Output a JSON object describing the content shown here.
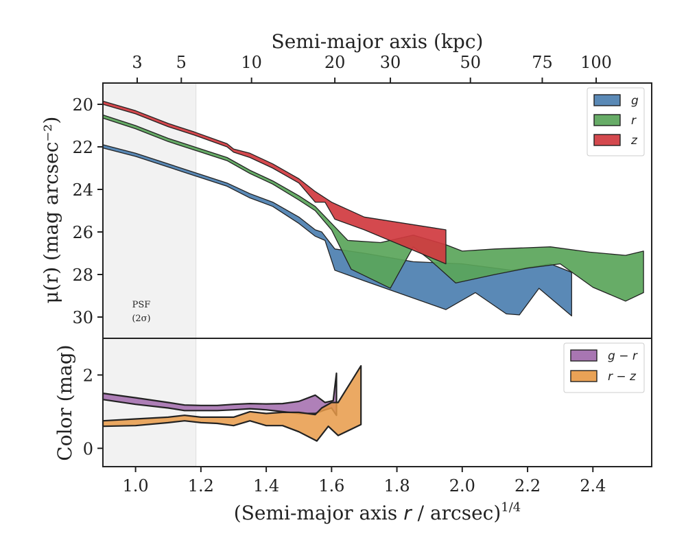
{
  "chart_data": [
    {
      "type": "area",
      "panel": "surface-brightness",
      "title": "",
      "xlabel_pre": "(Semi-major axis ",
      "xlabel_var": "r",
      "xlabel_post": " / arcsec)",
      "xlabel_sup": "1/4",
      "ylabel": "μ(r) (mag arcsec⁻²)",
      "top_axis_label": "Semi-major axis (kpc)",
      "xlim": [
        0.9,
        2.58
      ],
      "ylim": [
        19,
        31
      ],
      "y_inverted": true,
      "yticks": [
        20,
        22,
        24,
        26,
        28,
        30
      ],
      "top_ticks": [
        {
          "label": "3",
          "x": 1.005
        },
        {
          "label": "5",
          "x": 1.14
        },
        {
          "label": "10",
          "x": 1.355
        },
        {
          "label": "20",
          "x": 1.61
        },
        {
          "label": "30",
          "x": 1.78
        },
        {
          "label": "50",
          "x": 2.025
        },
        {
          "label": "75",
          "x": 2.245
        },
        {
          "label": "100",
          "x": 2.41
        }
      ],
      "psf_region": {
        "x0": 0.9,
        "x1": 1.185,
        "label_line1": "PSF",
        "label_line2": "(2σ)"
      },
      "legend_position": "top-right",
      "series": [
        {
          "name": "g",
          "color": "#4c7fb0",
          "upper": [
            [
              0.9,
              21.9
            ],
            [
              1.0,
              22.3
            ],
            [
              1.1,
              22.8
            ],
            [
              1.18,
              23.2
            ],
            [
              1.28,
              23.7
            ],
            [
              1.35,
              24.2
            ],
            [
              1.42,
              24.6
            ],
            [
              1.5,
              25.3
            ],
            [
              1.55,
              25.9
            ],
            [
              1.57,
              26.0
            ],
            [
              1.61,
              26.8
            ],
            [
              1.7,
              27.0
            ],
            [
              1.85,
              27.4
            ],
            [
              2.0,
              27.5
            ],
            [
              2.15,
              27.8
            ],
            [
              2.27,
              27.5
            ],
            [
              2.335,
              27.9
            ]
          ],
          "lower": [
            [
              0.9,
              22.05
            ],
            [
              1.0,
              22.45
            ],
            [
              1.1,
              22.95
            ],
            [
              1.18,
              23.35
            ],
            [
              1.28,
              23.85
            ],
            [
              1.35,
              24.4
            ],
            [
              1.42,
              24.8
            ],
            [
              1.5,
              25.6
            ],
            [
              1.55,
              26.2
            ],
            [
              1.58,
              26.4
            ],
            [
              1.61,
              27.8
            ],
            [
              1.7,
              28.3
            ],
            [
              1.95,
              29.65
            ],
            [
              2.04,
              28.85
            ],
            [
              2.135,
              29.85
            ],
            [
              2.175,
              29.9
            ],
            [
              2.235,
              28.65
            ],
            [
              2.335,
              29.95
            ]
          ]
        },
        {
          "name": "r",
          "color": "#5aa55a",
          "upper": [
            [
              0.9,
              20.5
            ],
            [
              1.0,
              21.0
            ],
            [
              1.1,
              21.6
            ],
            [
              1.18,
              22.0
            ],
            [
              1.28,
              22.5
            ],
            [
              1.35,
              23.1
            ],
            [
              1.42,
              23.6
            ],
            [
              1.5,
              24.3
            ],
            [
              1.55,
              24.8
            ],
            [
              1.6,
              25.6
            ],
            [
              1.65,
              26.4
            ],
            [
              1.75,
              26.5
            ],
            [
              1.85,
              26.15
            ],
            [
              1.95,
              26.6
            ],
            [
              2.0,
              26.9
            ],
            [
              2.1,
              26.8
            ],
            [
              2.27,
              26.7
            ],
            [
              2.39,
              26.95
            ],
            [
              2.5,
              27.1
            ],
            [
              2.555,
              26.9
            ]
          ],
          "lower": [
            [
              0.9,
              20.65
            ],
            [
              1.0,
              21.15
            ],
            [
              1.1,
              21.75
            ],
            [
              1.18,
              22.15
            ],
            [
              1.28,
              22.65
            ],
            [
              1.35,
              23.25
            ],
            [
              1.42,
              23.75
            ],
            [
              1.5,
              24.5
            ],
            [
              1.55,
              25.0
            ],
            [
              1.6,
              25.9
            ],
            [
              1.66,
              27.75
            ],
            [
              1.78,
              28.65
            ],
            [
              1.85,
              26.7
            ],
            [
              1.9,
              27.3
            ],
            [
              1.98,
              28.4
            ],
            [
              2.1,
              28.0
            ],
            [
              2.2,
              27.7
            ],
            [
              2.3,
              27.5
            ],
            [
              2.4,
              28.6
            ],
            [
              2.5,
              29.25
            ],
            [
              2.555,
              28.85
            ]
          ]
        },
        {
          "name": "z",
          "color": "#d0393f",
          "upper": [
            [
              0.9,
              19.85
            ],
            [
              1.0,
              20.3
            ],
            [
              1.1,
              20.9
            ],
            [
              1.18,
              21.3
            ],
            [
              1.28,
              21.85
            ],
            [
              1.3,
              22.1
            ],
            [
              1.35,
              22.3
            ],
            [
              1.42,
              22.8
            ],
            [
              1.5,
              23.5
            ],
            [
              1.55,
              24.1
            ],
            [
              1.6,
              24.6
            ],
            [
              1.7,
              25.3
            ],
            [
              1.95,
              25.9
            ]
          ],
          "lower": [
            [
              0.9,
              20.0
            ],
            [
              1.0,
              20.45
            ],
            [
              1.1,
              21.05
            ],
            [
              1.18,
              21.45
            ],
            [
              1.28,
              22.0
            ],
            [
              1.3,
              22.25
            ],
            [
              1.35,
              22.5
            ],
            [
              1.42,
              23.0
            ],
            [
              1.5,
              23.7
            ],
            [
              1.55,
              24.6
            ],
            [
              1.58,
              24.6
            ],
            [
              1.61,
              25.4
            ],
            [
              1.7,
              25.9
            ],
            [
              1.95,
              27.5
            ]
          ]
        }
      ]
    },
    {
      "type": "area",
      "panel": "color",
      "title": "",
      "xlabel": "(Semi-major axis r / arcsec)^1/4",
      "ylabel": "Color (mag)",
      "xlim": [
        0.9,
        2.58
      ],
      "ylim": [
        -0.5,
        3.0
      ],
      "yticks": [
        0,
        2
      ],
      "xticks": [
        1.0,
        1.2,
        1.4,
        1.6,
        1.8,
        2.0,
        2.2,
        2.4
      ],
      "xtick_labels": [
        "1.0",
        "1.2",
        "1.4",
        "1.6",
        "1.8",
        "2.0",
        "2.2",
        "2.4"
      ],
      "legend_position": "top-right",
      "series": [
        {
          "name": "g − r",
          "color": "#a16aab",
          "upper": [
            [
              0.9,
              1.5
            ],
            [
              1.0,
              1.38
            ],
            [
              1.1,
              1.25
            ],
            [
              1.15,
              1.18
            ],
            [
              1.2,
              1.17
            ],
            [
              1.25,
              1.17
            ],
            [
              1.3,
              1.2
            ],
            [
              1.35,
              1.22
            ],
            [
              1.4,
              1.21
            ],
            [
              1.45,
              1.22
            ],
            [
              1.5,
              1.28
            ],
            [
              1.55,
              1.45
            ],
            [
              1.58,
              1.25
            ],
            [
              1.605,
              1.3
            ],
            [
              1.615,
              2.05
            ]
          ],
          "lower": [
            [
              0.9,
              1.33
            ],
            [
              1.0,
              1.2
            ],
            [
              1.1,
              1.1
            ],
            [
              1.15,
              1.03
            ],
            [
              1.2,
              1.03
            ],
            [
              1.25,
              1.03
            ],
            [
              1.3,
              1.05
            ],
            [
              1.35,
              1.08
            ],
            [
              1.4,
              1.05
            ],
            [
              1.45,
              1.0
            ],
            [
              1.5,
              0.95
            ],
            [
              1.55,
              0.95
            ],
            [
              1.58,
              1.05
            ],
            [
              1.6,
              1.1
            ],
            [
              1.615,
              0.9
            ]
          ]
        },
        {
          "name": "r − z",
          "color": "#e79a48",
          "upper": [
            [
              0.9,
              0.75
            ],
            [
              1.0,
              0.8
            ],
            [
              1.1,
              0.85
            ],
            [
              1.15,
              0.9
            ],
            [
              1.2,
              0.85
            ],
            [
              1.25,
              0.85
            ],
            [
              1.3,
              0.85
            ],
            [
              1.35,
              1.0
            ],
            [
              1.4,
              0.95
            ],
            [
              1.45,
              0.98
            ],
            [
              1.5,
              0.98
            ],
            [
              1.55,
              0.92
            ],
            [
              1.57,
              1.1
            ],
            [
              1.6,
              1.25
            ],
            [
              1.62,
              1.25
            ],
            [
              1.69,
              2.25
            ]
          ],
          "lower": [
            [
              0.9,
              0.6
            ],
            [
              1.0,
              0.62
            ],
            [
              1.1,
              0.7
            ],
            [
              1.15,
              0.75
            ],
            [
              1.2,
              0.7
            ],
            [
              1.25,
              0.68
            ],
            [
              1.3,
              0.62
            ],
            [
              1.35,
              0.75
            ],
            [
              1.4,
              0.62
            ],
            [
              1.45,
              0.62
            ],
            [
              1.5,
              0.45
            ],
            [
              1.555,
              0.2
            ],
            [
              1.59,
              0.6
            ],
            [
              1.62,
              0.35
            ],
            [
              1.69,
              0.65
            ]
          ]
        }
      ]
    }
  ]
}
